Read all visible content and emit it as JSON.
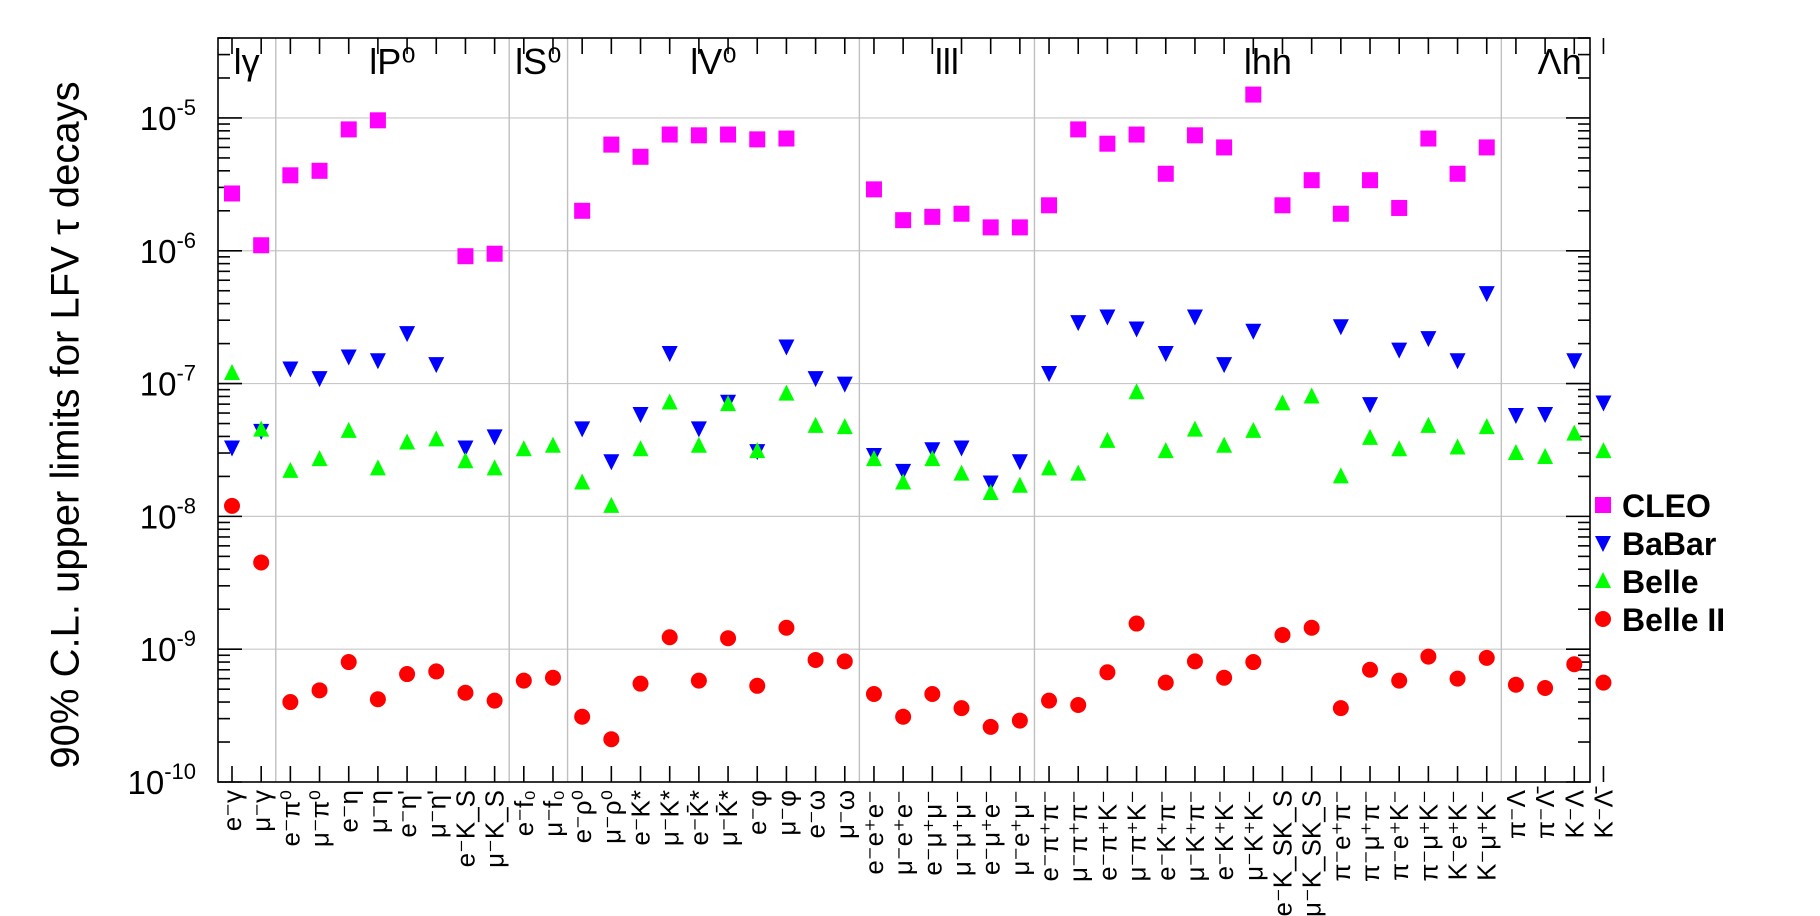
{
  "chart_data": {
    "type": "scatter",
    "ylabel": "90% C.L. upper limits for LFV τ decays",
    "yscale": "log",
    "ylim": [
      1e-10,
      4e-05
    ],
    "y_ticks": [
      {
        "value": 1e-10,
        "base": "10",
        "exp": "-10"
      },
      {
        "value": 1e-09,
        "base": "10",
        "exp": "-9"
      },
      {
        "value": 1e-08,
        "base": "10",
        "exp": "-8"
      },
      {
        "value": 1e-07,
        "base": "10",
        "exp": "-7"
      },
      {
        "value": 1e-06,
        "base": "10",
        "exp": "-6"
      },
      {
        "value": 1e-05,
        "base": "10",
        "exp": "-5"
      }
    ],
    "grid": true,
    "legend_position": "right",
    "groups": [
      {
        "label": "lγ",
        "start": 0,
        "end": 2
      },
      {
        "label": "lP⁰",
        "start": 2,
        "end": 10
      },
      {
        "label": "lS⁰",
        "start": 10,
        "end": 12
      },
      {
        "label": "lV⁰",
        "start": 12,
        "end": 22
      },
      {
        "label": "lll",
        "start": 22,
        "end": 28
      },
      {
        "label": "lhh",
        "start": 28,
        "end": 44
      },
      {
        "label": "Λh",
        "start": 44,
        "end": 48
      }
    ],
    "categories": [
      "e⁻γ",
      "μ⁻γ",
      "e⁻π⁰",
      "μ⁻π⁰",
      "e⁻η",
      "μ⁻η",
      "e⁻η'",
      "μ⁻η'",
      "e⁻K_S",
      "μ⁻K_S",
      "e⁻f₀",
      "μ⁻f₀",
      "e⁻ρ⁰",
      "μ⁻ρ⁰",
      "e⁻K*",
      "μ⁻K*",
      "e⁻K̄*",
      "μ⁻K̄*",
      "e⁻φ",
      "μ⁻φ",
      "e⁻ω",
      "μ⁻ω",
      "e⁻e⁺e⁻",
      "μ⁻e⁺e⁻",
      "e⁻μ⁺μ⁻",
      "μ⁻μ⁺μ⁻",
      "e⁻μ⁺e⁻",
      "μ⁻e⁺μ⁻",
      "e⁻π⁺π⁻",
      "μ⁻π⁺π⁻",
      "e⁻π⁺K⁻",
      "μ⁻π⁺K⁻",
      "e⁻K⁺π⁻",
      "μ⁻K⁺π⁻",
      "e⁻K⁺K⁻",
      "μ⁻K⁺K⁻",
      "e⁻K_SK_S",
      "μ⁻K_SK_S",
      "π⁻e⁺π⁻",
      "π⁻μ⁺π⁻",
      "π⁻e⁺K⁻",
      "π⁻μ⁺K⁻",
      "K⁻e⁺K⁻",
      "K⁻μ⁺K⁻",
      "π⁻Λ",
      "π⁻Λ̄",
      "K⁻Λ",
      "K⁻Λ̄"
    ],
    "series": [
      {
        "name": "CLEO",
        "marker": "square",
        "color": "#ff00ff",
        "values": [
          2.7e-06,
          1.1e-06,
          3.7e-06,
          4e-06,
          8.2e-06,
          9.6e-06,
          null,
          null,
          9.1e-07,
          9.5e-07,
          null,
          null,
          2e-06,
          6.3e-06,
          5.1e-06,
          7.5e-06,
          7.4e-06,
          7.5e-06,
          6.9e-06,
          7e-06,
          null,
          null,
          2.9e-06,
          1.7e-06,
          1.8e-06,
          1.9e-06,
          1.5e-06,
          1.5e-06,
          2.2e-06,
          8.2e-06,
          6.4e-06,
          7.5e-06,
          3.8e-06,
          7.4e-06,
          6e-06,
          1.5e-05,
          2.2e-06,
          3.4e-06,
          1.9e-06,
          3.4e-06,
          2.1e-06,
          7e-06,
          3.8e-06,
          6e-06,
          null,
          null,
          null,
          null
        ]
      },
      {
        "name": "BaBar",
        "marker": "triangle-down",
        "color": "#0000ff",
        "values": [
          3.3e-08,
          4.4e-08,
          1.3e-07,
          1.1e-07,
          1.6e-07,
          1.5e-07,
          2.4e-07,
          1.4e-07,
          3.3e-08,
          4e-08,
          null,
          null,
          4.6e-08,
          2.6e-08,
          5.9e-08,
          1.7e-07,
          4.6e-08,
          7.3e-08,
          3.1e-08,
          1.9e-07,
          1.1e-07,
          1e-07,
          2.9e-08,
          2.2e-08,
          3.2e-08,
          3.3e-08,
          1.8e-08,
          2.6e-08,
          1.2e-07,
          2.9e-07,
          3.2e-07,
          2.6e-07,
          1.7e-07,
          3.2e-07,
          1.4e-07,
          2.5e-07,
          null,
          null,
          2.7e-07,
          7e-08,
          1.8e-07,
          2.2e-07,
          1.5e-07,
          4.8e-07,
          5.8e-08,
          5.9e-08,
          1.5e-07,
          7.2e-08
        ]
      },
      {
        "name": "Belle",
        "marker": "triangle-up",
        "color": "#00ff00",
        "values": [
          1.2e-07,
          4.5e-08,
          2.2e-08,
          2.7e-08,
          4.4e-08,
          2.3e-08,
          3.6e-08,
          3.8e-08,
          2.6e-08,
          2.3e-08,
          3.2e-08,
          3.4e-08,
          1.8e-08,
          1.2e-08,
          3.2e-08,
          7.2e-08,
          3.4e-08,
          7e-08,
          3.1e-08,
          8.4e-08,
          4.8e-08,
          4.7e-08,
          2.7e-08,
          1.8e-08,
          2.7e-08,
          2.1e-08,
          1.5e-08,
          1.7e-08,
          2.3e-08,
          2.1e-08,
          3.7e-08,
          8.6e-08,
          3.1e-08,
          4.5e-08,
          3.4e-08,
          4.4e-08,
          7.1e-08,
          8e-08,
          2e-08,
          3.9e-08,
          3.2e-08,
          4.8e-08,
          3.3e-08,
          4.7e-08,
          3e-08,
          2.8e-08,
          4.2e-08,
          3.1e-08
        ]
      },
      {
        "name": "Belle II",
        "marker": "circle",
        "color": "#ff0000",
        "values": [
          1.2e-08,
          4.5e-09,
          4e-10,
          4.9e-10,
          8e-10,
          4.2e-10,
          6.5e-10,
          6.8e-10,
          4.7e-10,
          4.1e-10,
          5.8e-10,
          6.1e-10,
          3.1e-10,
          2.1e-10,
          5.5e-10,
          1.23e-09,
          5.8e-10,
          1.21e-09,
          5.3e-10,
          1.45e-09,
          8.3e-10,
          8.1e-10,
          4.6e-10,
          3.1e-10,
          4.6e-10,
          3.6e-10,
          2.6e-10,
          2.9e-10,
          4.1e-10,
          3.8e-10,
          6.7e-10,
          1.56e-09,
          5.6e-10,
          8.1e-10,
          6.1e-10,
          8e-10,
          1.28e-09,
          1.45e-09,
          3.6e-10,
          7e-10,
          5.8e-10,
          8.8e-10,
          6e-10,
          8.6e-10,
          5.4e-10,
          5.1e-10,
          7.7e-10,
          5.6e-10
        ]
      }
    ]
  }
}
